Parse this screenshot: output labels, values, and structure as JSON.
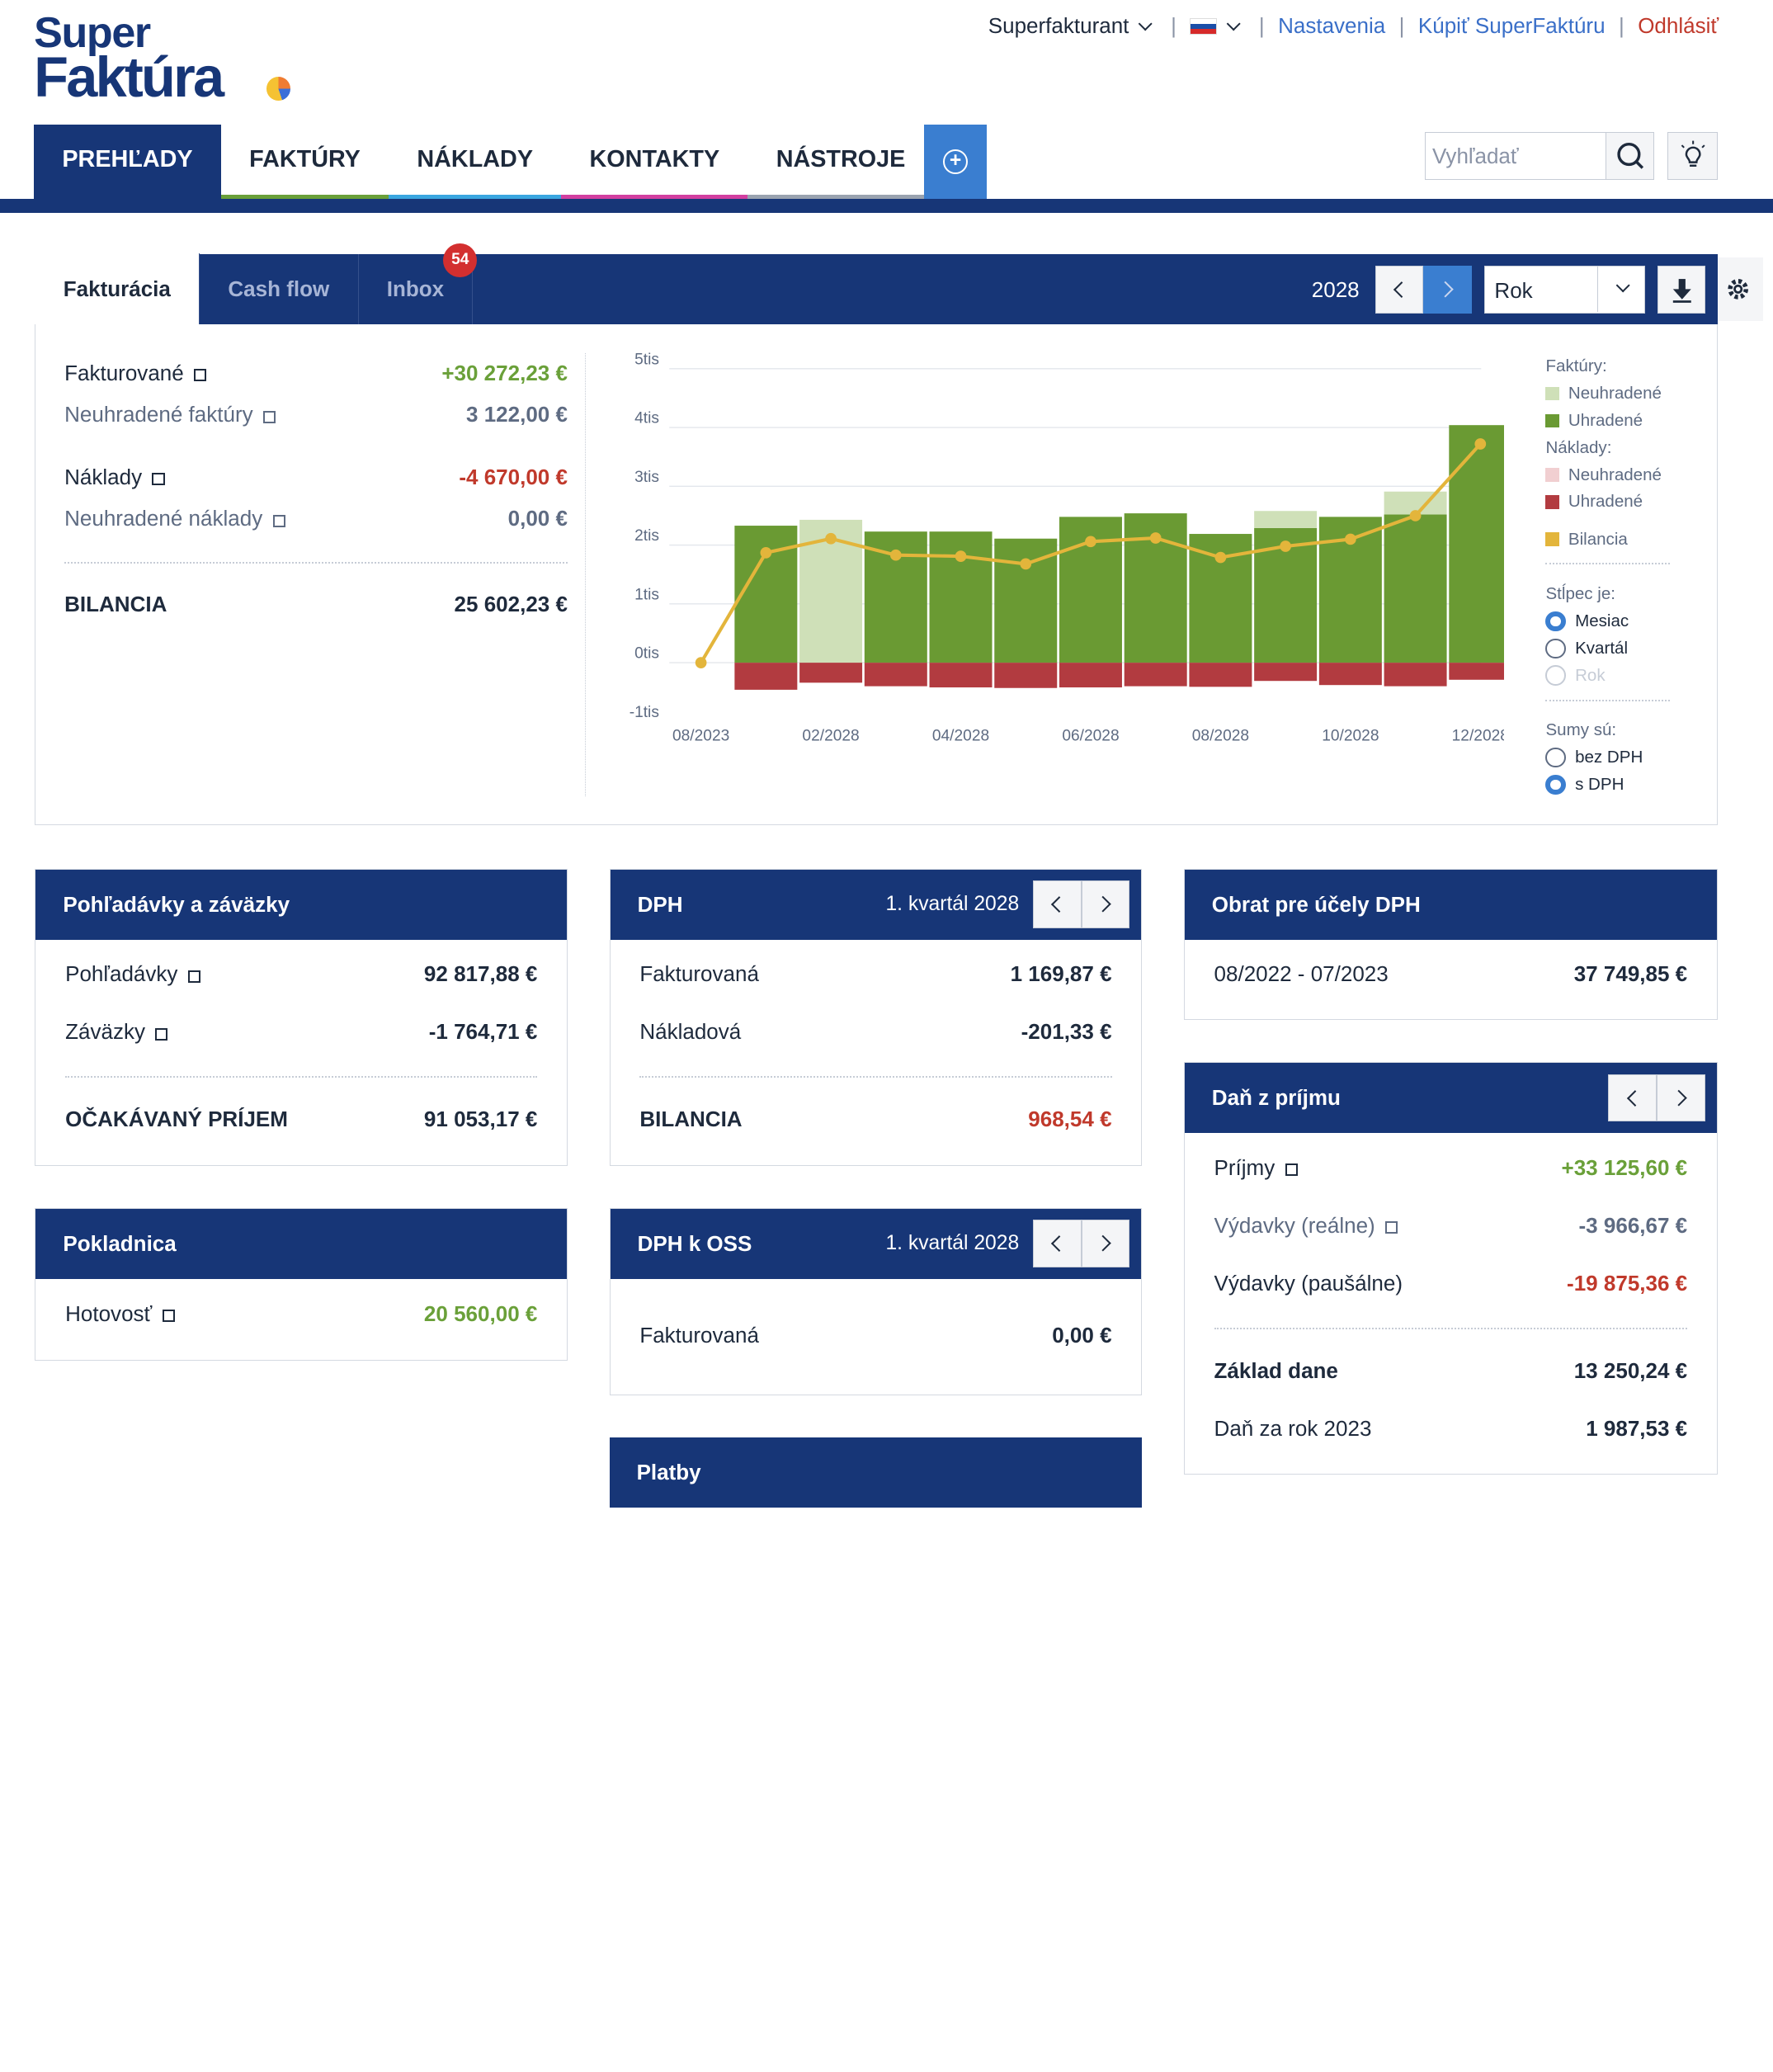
{
  "logo": {
    "line1": "Super",
    "line2": "Faktúra"
  },
  "topnav": {
    "user": "Superfakturant",
    "settings": "Nastavenia",
    "buy": "Kúpiť SuperFaktúru",
    "logout": "Odhlásiť"
  },
  "mainnav": [
    "PREHĽADY",
    "FAKTÚRY",
    "NÁKLADY",
    "KONTAKTY",
    "NÁSTROJE"
  ],
  "search": {
    "placeholder": "Vyhľadať"
  },
  "tabs": [
    "Fakturácia",
    "Cash flow",
    "Inbox"
  ],
  "inbox_badge": "54",
  "year": "2028",
  "period_select": "Rok",
  "summary": {
    "fakturovane": {
      "label": "Fakturované",
      "value": "+30 272,23 €"
    },
    "neuhradene_faktury": {
      "label": "Neuhradené faktúry",
      "value": "3 122,00 €"
    },
    "naklady": {
      "label": "Náklady",
      "value": "-4 670,00 €"
    },
    "neuhradene_naklady": {
      "label": "Neuhradené náklady",
      "value": "0,00 €"
    },
    "bilancia": {
      "label": "BILANCIA",
      "value": "25 602,23 €"
    }
  },
  "legend": {
    "faktury_title": "Faktúry:",
    "neuhradene": "Neuhradené",
    "uhradene": "Uhradené",
    "naklady_title": "Náklady:",
    "bilancia": "Bilancia",
    "stlpec_title": "Stĺpec je:",
    "mesiac": "Mesiac",
    "kvartal": "Kvartál",
    "rok": "Rok",
    "sumy_title": "Sumy sú:",
    "bez_dph": "bez DPH",
    "s_dph": "s DPH"
  },
  "colors": {
    "navy": "#173677",
    "faktury_neuhradene": "#cfe0b8",
    "faktury_uhradene": "#6a9a33",
    "naklady_neuhradene": "#f1cfd1",
    "naklady_uhradene": "#b23b40",
    "bilancia": "#e3b53b"
  },
  "chart_data": {
    "type": "bar",
    "categories": [
      "08/2023",
      "01/2028",
      "02/2028",
      "03/2028",
      "04/2028",
      "05/2028",
      "06/2028",
      "07/2028",
      "08/2028",
      "09/2028",
      "10/2028",
      "11/2028",
      "12/2028"
    ],
    "x_tick_labels": [
      "08/2023",
      "02/2028",
      "04/2028",
      "06/2028",
      "08/2028",
      "10/2028",
      "12/2028"
    ],
    "y_tick_labels": [
      "-1tis",
      "0tis",
      "1tis",
      "2tis",
      "3tis",
      "4tis",
      "5tis"
    ],
    "ylim": [
      -1000,
      5000
    ],
    "series": [
      {
        "name": "Faktúry Uhradené",
        "values": [
          0,
          2330,
          0,
          2230,
          2230,
          2110,
          2480,
          2540,
          2190,
          2290,
          2480,
          2520,
          4040
        ]
      },
      {
        "name": "Faktúry Neuhradené",
        "values": [
          0,
          0,
          2430,
          0,
          0,
          0,
          0,
          0,
          0,
          0,
          0,
          0,
          0
        ]
      },
      {
        "name": "Faktúry Neuhradené (časť)",
        "values": [
          0,
          0,
          0,
          0,
          0,
          0,
          0,
          0,
          0,
          290,
          0,
          390,
          0
        ]
      },
      {
        "name": "Náklady Uhradené",
        "values": [
          0,
          -460,
          -340,
          -400,
          -420,
          -430,
          -420,
          -400,
          -410,
          -310,
          -380,
          -400,
          -290
        ]
      },
      {
        "name": "Bilancia",
        "values": [
          0,
          1870,
          2110,
          1830,
          1810,
          1680,
          2060,
          2120,
          1790,
          1980,
          2100,
          2500,
          3720
        ]
      }
    ]
  },
  "pohladavky": {
    "title": "Pohľadávky a záväzky",
    "rows": [
      {
        "label": "Pohľadávky",
        "value": "92 817,88 €"
      },
      {
        "label": "Záväzky",
        "value": "-1 764,71 €"
      }
    ],
    "total": {
      "label": "OČAKÁVANÝ PRÍJEM",
      "value": "91 053,17 €"
    }
  },
  "pokladnica": {
    "title": "Pokladnica",
    "label": "Hotovosť",
    "value": "20 560,00 €"
  },
  "dph": {
    "title": "DPH",
    "period": "1. kvartál 2028",
    "rows": [
      {
        "label": "Fakturovaná",
        "value": "1 169,87 €"
      },
      {
        "label": "Nákladová",
        "value": "-201,33 €"
      }
    ],
    "total": {
      "label": "BILANCIA",
      "value": "968,54 €"
    }
  },
  "dph_oss": {
    "title": "DPH k OSS",
    "period": "1. kvartál 2028",
    "label": "Fakturovaná",
    "value": "0,00 €"
  },
  "platby": {
    "title": "Platby"
  },
  "obrat": {
    "title": "Obrat pre účely DPH",
    "label": "08/2022 - 07/2023",
    "value": "37 749,85 €"
  },
  "dan": {
    "title": "Daň z príjmu",
    "prijmy": {
      "label": "Príjmy",
      "value": "+33 125,60 €"
    },
    "vydavky_realne": {
      "label": "Výdavky (reálne)",
      "value": "-3 966,67 €"
    },
    "vydavky_pausalne": {
      "label": "Výdavky (paušálne)",
      "value": "-19 875,36 €"
    },
    "zaklad": {
      "label": "Základ dane",
      "value": "13 250,24 €"
    },
    "dan_rok": {
      "label": "Daň za rok 2023",
      "value": "1 987,53 €"
    }
  }
}
